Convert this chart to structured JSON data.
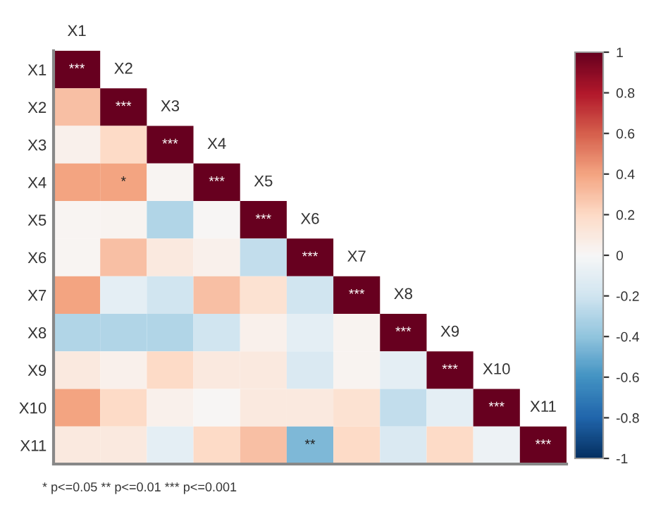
{
  "chart_data": {
    "type": "heatmap",
    "categories": [
      "X1",
      "X2",
      "X3",
      "X4",
      "X5",
      "X6",
      "X7",
      "X8",
      "X9",
      "X10",
      "X11"
    ],
    "y_categories": [
      "X1",
      "X2",
      "X3",
      "X4",
      "X5",
      "X6",
      "X7",
      "X8",
      "X9",
      "X10",
      "X11"
    ],
    "cells": [
      [
        1,
        null,
        null,
        null,
        null,
        null,
        null,
        null,
        null,
        null,
        null
      ],
      [
        0.3,
        1,
        null,
        null,
        null,
        null,
        null,
        null,
        null,
        null,
        null
      ],
      [
        0.05,
        0.2,
        1,
        null,
        null,
        null,
        null,
        null,
        null,
        null,
        null
      ],
      [
        0.4,
        0.4,
        0.02,
        1,
        null,
        null,
        null,
        null,
        null,
        null,
        null
      ],
      [
        0.02,
        0.03,
        -0.3,
        0.01,
        1,
        null,
        null,
        null,
        null,
        null,
        null
      ],
      [
        0.02,
        0.3,
        0.1,
        0.05,
        -0.25,
        1,
        null,
        null,
        null,
        null,
        null
      ],
      [
        0.4,
        -0.1,
        -0.2,
        0.3,
        0.15,
        -0.2,
        1,
        null,
        null,
        null,
        null
      ],
      [
        -0.3,
        -0.3,
        -0.3,
        -0.2,
        0.05,
        -0.1,
        0.03,
        1,
        null,
        null,
        null
      ],
      [
        0.1,
        0.05,
        0.2,
        0.1,
        0.1,
        -0.15,
        0.03,
        -0.1,
        1,
        null,
        null
      ],
      [
        0.4,
        0.2,
        0.05,
        0.01,
        0.1,
        0.1,
        0.15,
        -0.25,
        -0.1,
        1,
        null
      ],
      [
        0.1,
        0.1,
        -0.1,
        0.2,
        0.3,
        -0.45,
        0.2,
        -0.15,
        0.2,
        -0.05,
        1
      ]
    ],
    "cell_labels": [
      [
        "***",
        null,
        null,
        null,
        null,
        null,
        null,
        null,
        null,
        null,
        null
      ],
      [
        null,
        "***",
        null,
        null,
        null,
        null,
        null,
        null,
        null,
        null,
        null
      ],
      [
        null,
        null,
        "***",
        null,
        null,
        null,
        null,
        null,
        null,
        null,
        null
      ],
      [
        null,
        "*",
        null,
        "***",
        null,
        null,
        null,
        null,
        null,
        null,
        null
      ],
      [
        null,
        null,
        null,
        null,
        "***",
        null,
        null,
        null,
        null,
        null,
        null
      ],
      [
        null,
        null,
        null,
        null,
        null,
        "***",
        null,
        null,
        null,
        null,
        null
      ],
      [
        null,
        null,
        null,
        null,
        null,
        null,
        "***",
        null,
        null,
        null,
        null
      ],
      [
        null,
        null,
        null,
        null,
        null,
        null,
        null,
        "***",
        null,
        null,
        null
      ],
      [
        null,
        null,
        null,
        null,
        null,
        null,
        null,
        null,
        "***",
        null,
        null
      ],
      [
        null,
        null,
        null,
        null,
        null,
        null,
        null,
        null,
        null,
        "***",
        null
      ],
      [
        null,
        null,
        null,
        null,
        null,
        "**",
        null,
        null,
        null,
        null,
        "***"
      ]
    ],
    "clim": [
      -1,
      1
    ],
    "cticks": [
      -1,
      -0.8,
      -0.6,
      -0.4,
      -0.2,
      0,
      0.2,
      0.4,
      0.6,
      0.8,
      1
    ],
    "annotations": [
      "* p<=0.05 ** p<=0.01 *** p<=0.001"
    ]
  }
}
